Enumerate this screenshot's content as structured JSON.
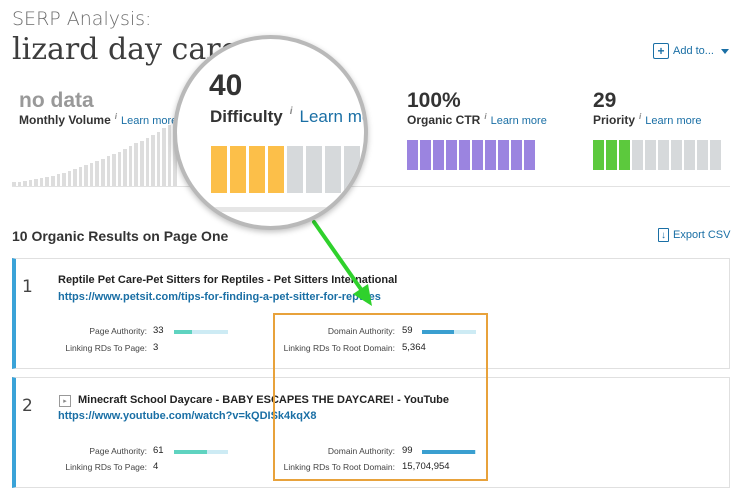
{
  "header": {
    "subtitle": "SERP Analysis:",
    "keyword": "lizard day care",
    "add_to_label": "Add to...",
    "add_icon": "plus-icon"
  },
  "metrics": {
    "volume": {
      "value": "no data",
      "label": "Monthly Volume",
      "learn": "Learn more"
    },
    "difficulty": {
      "value": "40",
      "label": "Difficulty",
      "learn": "Learn more",
      "bars": {
        "total": 10,
        "filled": 4,
        "fill_color": "#fcbf49",
        "empty_color": "#d6d9db"
      }
    },
    "ctr": {
      "value": "100%",
      "label": "Organic CTR",
      "learn": "Learn more",
      "bars": {
        "total": 10,
        "filled": 10,
        "fill_color": "#9b84e0",
        "empty_color": "#d6d9db"
      }
    },
    "priority": {
      "value": "29",
      "label": "Priority",
      "learn": "Learn more",
      "bars": {
        "total": 10,
        "filled": 3,
        "fill_color": "#5cc93d",
        "empty_color": "#d6d9db"
      }
    },
    "info_glyph": "i"
  },
  "results": {
    "heading": "10 Organic Results on Page One",
    "export_label": "Export CSV",
    "items": [
      {
        "rank": "1",
        "title": "Reptile Pet Care-Pet Sitters for Reptiles - Pet Sitters International",
        "url": "https://www.petsit.com/tips-for-finding-a-pet-sitter-for-reptiles",
        "page_authority_label": "Page Authority:",
        "page_authority": "33",
        "linking_page_label": "Linking RDs To Page:",
        "linking_page": "3",
        "domain_authority_label": "Domain Authority:",
        "domain_authority": "59",
        "linking_root_label": "Linking RDs To Root Domain:",
        "linking_root": "5,364"
      },
      {
        "rank": "2",
        "title": "Minecraft School Daycare - BABY ESCAPES THE DAYCARE! - YouTube",
        "url": "https://www.youtube.com/watch?v=kQDISk4kqX8",
        "page_authority_label": "Page Authority:",
        "page_authority": "61",
        "linking_page_label": "Linking RDs To Page:",
        "linking_page": "4",
        "domain_authority_label": "Domain Authority:",
        "domain_authority": "99",
        "linking_root_label": "Linking RDs To Root Domain:",
        "linking_root": "15,704,954"
      }
    ]
  },
  "colors": {
    "accent": "#1a6fa5",
    "card_border": "#3aa3d8",
    "pa_fill": "#5fd3c0",
    "da_fill": "#3a9fd0",
    "annotation_box": "#e8a23b",
    "annotation_arrow": "#2fd12c"
  }
}
